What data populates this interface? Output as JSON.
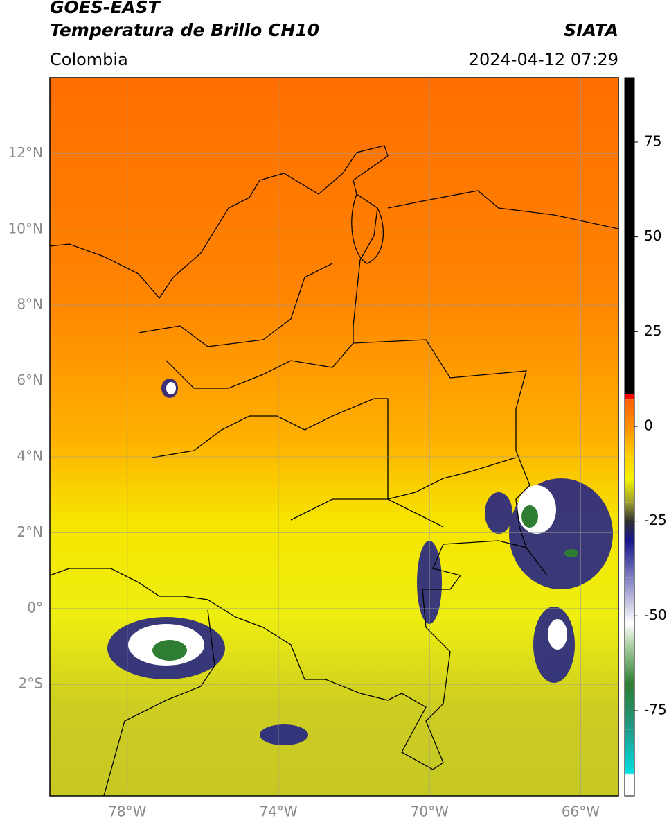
{
  "header": {
    "title": "GOES-EAST",
    "subtitle": "Temperatura de Brillo CH10",
    "region": "Colombia",
    "source": "SIATA",
    "timestamp": "2024-04-12 07:29"
  },
  "map": {
    "xlim": [
      -80.05,
      -65
    ],
    "ylim": [
      -4.94,
      14
    ],
    "xticks": [
      {
        "value": -78,
        "label": "78°W"
      },
      {
        "value": -74,
        "label": "74°W"
      },
      {
        "value": -70,
        "label": "70°W"
      },
      {
        "value": -66,
        "label": "66°W"
      }
    ],
    "yticks": [
      {
        "value": 12,
        "label": "12°N"
      },
      {
        "value": 10,
        "label": "10°N"
      },
      {
        "value": 8,
        "label": "8°N"
      },
      {
        "value": 6,
        "label": "6°N"
      },
      {
        "value": 4,
        "label": "4°N"
      },
      {
        "value": 2,
        "label": "2°N"
      },
      {
        "value": 0,
        "label": "0°"
      },
      {
        "value": -2,
        "label": "2°S"
      }
    ],
    "grid": true
  },
  "colorbar": {
    "lim": [
      -97.5,
      92
    ],
    "ticks": [
      75,
      50,
      25,
      0,
      -25,
      -50,
      -75
    ],
    "stops": [
      {
        "value": -97.5,
        "color": "#ffffff"
      },
      {
        "value": -92,
        "color": "#ffffff"
      },
      {
        "value": -91.5,
        "color": "#00e0e0"
      },
      {
        "value": -80,
        "color": "#1f9a88"
      },
      {
        "value": -68,
        "color": "#2e7d32"
      },
      {
        "value": -58,
        "color": "#a8cfa0"
      },
      {
        "value": -52,
        "color": "#ffffff"
      },
      {
        "value": -40,
        "color": "#8080c0"
      },
      {
        "value": -30,
        "color": "#14148a"
      },
      {
        "value": -25,
        "color": "#303030"
      },
      {
        "value": -20,
        "color": "#a0a030"
      },
      {
        "value": -14,
        "color": "#f2f200"
      },
      {
        "value": -8,
        "color": "#ffd000"
      },
      {
        "value": 0,
        "color": "#ff9000"
      },
      {
        "value": 7,
        "color": "#ff6000"
      },
      {
        "value": 7.5,
        "color": "#ee0000"
      },
      {
        "value": 8.4,
        "color": "#ff0000"
      },
      {
        "value": 8.5,
        "color": "#000000"
      },
      {
        "value": 92,
        "color": "#000000"
      }
    ]
  }
}
